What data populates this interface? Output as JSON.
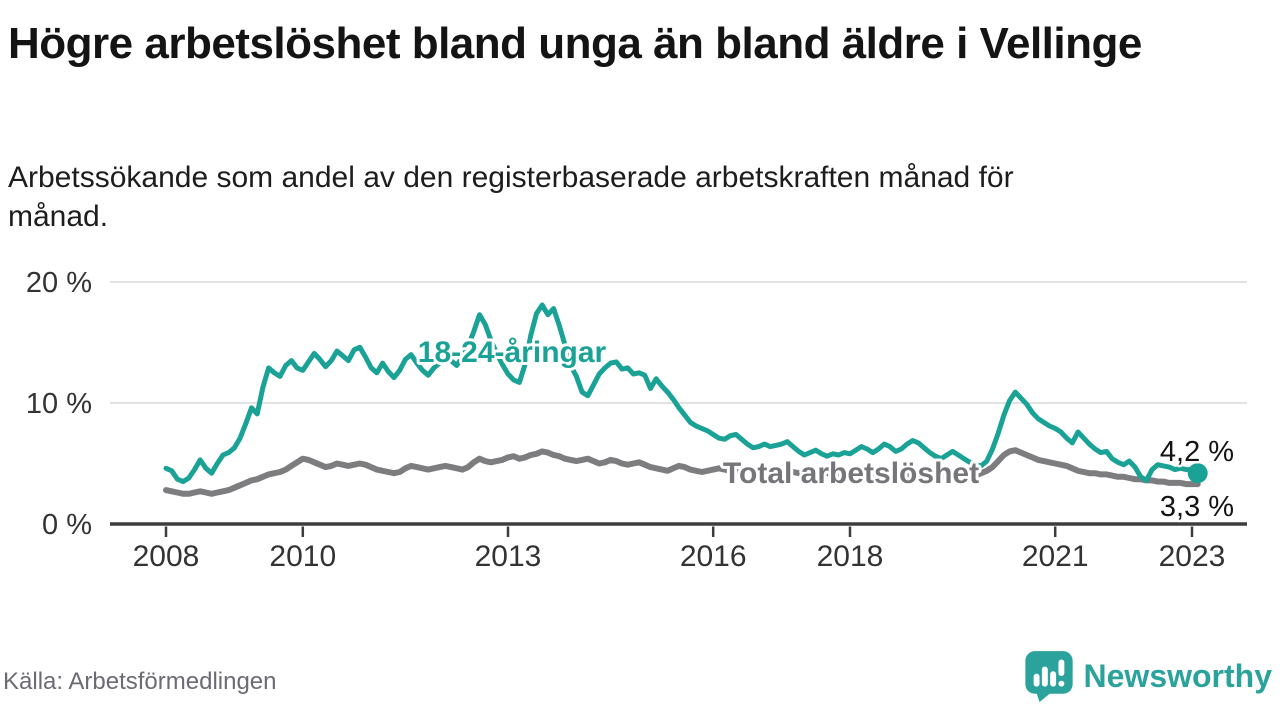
{
  "header": {
    "title": "Högre arbetslöshet bland unga än bland äldre i Vellinge",
    "subtitle": "Arbetssökande som andel av den registerbaserade arbetskraften månad för månad."
  },
  "colors": {
    "accent_teal": "#1aa296",
    "line_gray": "#7d7d80",
    "label_gray": "#76767a",
    "axis": "#3d3d3d",
    "grid": "#d9d9d9",
    "tick_text": "#333333",
    "value_text": "#141414",
    "brand_teal": "#2ba29b"
  },
  "chart_data": {
    "type": "line",
    "frequency": "monthly",
    "x_axis": {
      "start": "2008-01",
      "end": "2023-02",
      "ticks": [
        {
          "year": 2008,
          "label": "2008"
        },
        {
          "year": 2010,
          "label": "2010"
        },
        {
          "year": 2013,
          "label": "2013"
        },
        {
          "year": 2016,
          "label": "2016"
        },
        {
          "year": 2018,
          "label": "2018"
        },
        {
          "year": 2021,
          "label": "2021"
        },
        {
          "year": 2023,
          "label": "2023"
        }
      ]
    },
    "y_axis": {
      "unit": "%",
      "range": [
        0,
        21
      ],
      "ticks": [
        {
          "value": 0,
          "label": "0 %"
        },
        {
          "value": 10,
          "label": "10 %"
        },
        {
          "value": 20,
          "label": "20 %"
        }
      ]
    },
    "grid": "horizontal",
    "series": [
      {
        "name": "Total arbetslöshet",
        "color": "#7d7d80",
        "end_value": 3.3,
        "end_label": "3,3 %",
        "end_dot": false,
        "values": [
          2.8,
          2.7,
          2.6,
          2.5,
          2.5,
          2.6,
          2.7,
          2.6,
          2.5,
          2.6,
          2.7,
          2.8,
          3.0,
          3.2,
          3.4,
          3.6,
          3.7,
          3.9,
          4.1,
          4.2,
          4.3,
          4.5,
          4.8,
          5.1,
          5.4,
          5.3,
          5.1,
          4.9,
          4.7,
          4.8,
          5.0,
          4.9,
          4.8,
          4.9,
          5.0,
          4.9,
          4.7,
          4.5,
          4.4,
          4.3,
          4.2,
          4.3,
          4.6,
          4.8,
          4.7,
          4.6,
          4.5,
          4.6,
          4.7,
          4.8,
          4.7,
          4.6,
          4.5,
          4.7,
          5.1,
          5.4,
          5.2,
          5.1,
          5.2,
          5.3,
          5.5,
          5.6,
          5.4,
          5.5,
          5.7,
          5.8,
          6.0,
          5.9,
          5.7,
          5.6,
          5.4,
          5.3,
          5.2,
          5.3,
          5.4,
          5.2,
          5.0,
          5.1,
          5.3,
          5.2,
          5.0,
          4.9,
          5.0,
          5.1,
          4.9,
          4.7,
          4.6,
          4.5,
          4.4,
          4.6,
          4.8,
          4.7,
          4.5,
          4.4,
          4.3,
          4.4,
          4.5,
          4.6,
          4.5,
          4.4,
          4.3,
          4.4,
          4.6,
          4.5,
          4.3,
          4.2,
          4.3,
          4.4,
          4.3,
          4.4,
          4.3,
          4.2,
          4.1,
          4.2,
          4.4,
          4.3,
          4.2,
          4.1,
          4.2,
          4.3,
          4.2,
          4.3,
          4.2,
          4.1,
          4.0,
          4.1,
          4.3,
          4.2,
          4.1,
          4.0,
          4.1,
          4.2,
          4.1,
          4.2,
          4.1,
          4.0,
          3.9,
          4.0,
          4.2,
          4.3,
          4.2,
          4.1,
          4.0,
          4.2,
          4.4,
          4.7,
          5.2,
          5.7,
          6.0,
          6.1,
          5.9,
          5.7,
          5.5,
          5.3,
          5.2,
          5.1,
          5.0,
          4.9,
          4.8,
          4.6,
          4.4,
          4.3,
          4.2,
          4.2,
          4.1,
          4.1,
          4.0,
          3.9,
          3.9,
          3.8,
          3.7,
          3.7,
          3.6,
          3.6,
          3.5,
          3.5,
          3.4,
          3.4,
          3.4,
          3.3,
          3.3,
          3.3
        ]
      },
      {
        "name": "18-24-åringar",
        "color": "#1aa296",
        "end_value": 4.2,
        "end_label": "4,2 %",
        "end_dot": true,
        "values": [
          4.6,
          4.4,
          3.7,
          3.5,
          3.8,
          4.5,
          5.3,
          4.6,
          4.2,
          5.0,
          5.7,
          5.9,
          6.3,
          7.1,
          8.3,
          9.6,
          9.1,
          11.3,
          12.9,
          12.5,
          12.2,
          13.1,
          13.5,
          12.9,
          12.7,
          13.4,
          14.1,
          13.6,
          13.0,
          13.5,
          14.3,
          13.9,
          13.5,
          14.4,
          14.6,
          13.8,
          12.9,
          12.5,
          13.3,
          12.6,
          12.1,
          12.7,
          13.6,
          14.0,
          13.3,
          12.7,
          12.3,
          12.9,
          13.3,
          13.9,
          13.5,
          13.1,
          13.8,
          14.7,
          15.9,
          17.3,
          16.5,
          15.2,
          14.1,
          13.2,
          12.4,
          11.9,
          11.7,
          13.2,
          15.6,
          17.4,
          18.1,
          17.3,
          17.8,
          16.4,
          14.8,
          13.1,
          12.2,
          10.9,
          10.6,
          11.5,
          12.4,
          12.9,
          13.3,
          13.4,
          12.8,
          12.9,
          12.4,
          12.5,
          12.3,
          11.2,
          12.0,
          11.4,
          10.9,
          10.3,
          9.6,
          9.0,
          8.4,
          8.1,
          7.9,
          7.7,
          7.4,
          7.1,
          7.0,
          7.3,
          7.4,
          7.0,
          6.6,
          6.3,
          6.4,
          6.6,
          6.4,
          6.5,
          6.6,
          6.8,
          6.4,
          6.0,
          5.7,
          5.9,
          6.1,
          5.8,
          5.6,
          5.8,
          5.7,
          5.9,
          5.8,
          6.1,
          6.4,
          6.2,
          5.9,
          6.2,
          6.6,
          6.4,
          6.0,
          6.2,
          6.6,
          6.9,
          6.7,
          6.3,
          5.9,
          5.6,
          5.4,
          5.7,
          6.0,
          5.7,
          5.4,
          5.1,
          4.9,
          4.8,
          5.2,
          6.2,
          7.5,
          9.0,
          10.2,
          10.9,
          10.4,
          9.9,
          9.2,
          8.7,
          8.4,
          8.1,
          7.9,
          7.6,
          7.1,
          6.7,
          7.6,
          7.1,
          6.6,
          6.2,
          5.9,
          6.0,
          5.4,
          5.1,
          4.9,
          5.2,
          4.7,
          3.9,
          3.6,
          4.5,
          4.9,
          4.8,
          4.7,
          4.5,
          4.6,
          4.5,
          4.5,
          4.2
        ]
      }
    ]
  },
  "footer": {
    "source": "Källa: Arbetsförmedlingen",
    "brand": "Newsworthy"
  }
}
